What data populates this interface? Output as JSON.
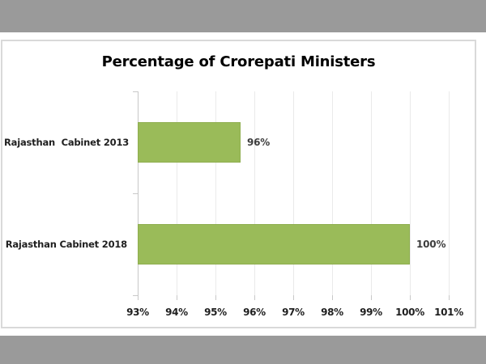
{
  "window": {
    "background": "#ffffff",
    "band_color": "#9a9a9a"
  },
  "chart": {
    "colors": {
      "bar": "#9abb59",
      "bar_border": "#8fae50",
      "frame_border": "#d9d9d9",
      "gridline": "#eaeaea",
      "axis": "#c8c8c8",
      "title_text": "#000000",
      "label_text": "#1f1f1f",
      "value_text": "#3d3d3d"
    }
  },
  "chart_data": {
    "type": "bar",
    "orientation": "horizontal",
    "title": "Percentage of Crorepati Ministers",
    "categories": [
      "Rajasthan  Cabinet 2013",
      "Rajasthan Cabinet 2018"
    ],
    "values": [
      96,
      100
    ],
    "value_labels": [
      "96%",
      "100%"
    ],
    "bar_extent_values": [
      95.65,
      100
    ],
    "x_ticks": [
      "93%",
      "94%",
      "95%",
      "96%",
      "97%",
      "98%",
      "99%",
      "100%",
      "101%"
    ],
    "x_tick_values": [
      93,
      94,
      95,
      96,
      97,
      98,
      99,
      100,
      101
    ],
    "xlim": [
      93,
      101
    ],
    "xlabel": "",
    "ylabel": "",
    "grid": true,
    "legend": false,
    "data_labels": true
  }
}
